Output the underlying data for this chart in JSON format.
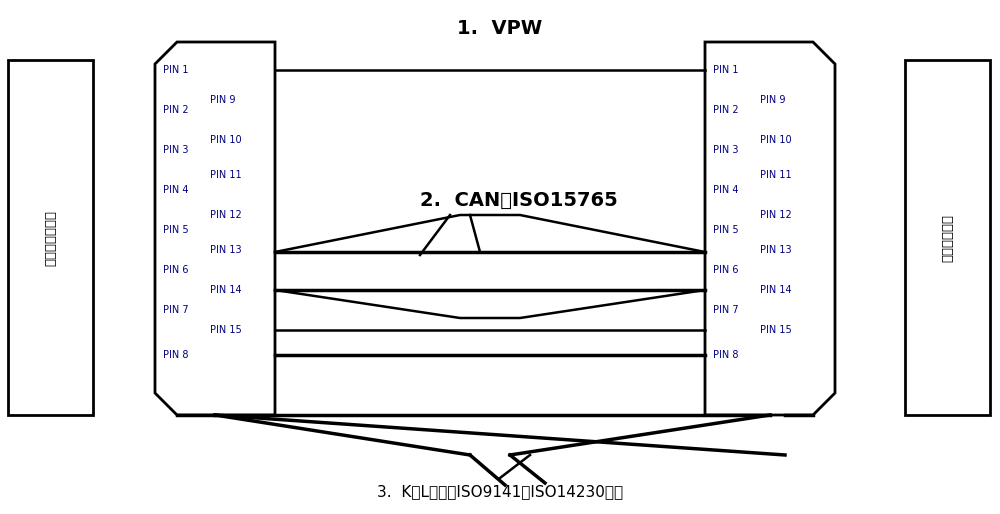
{
  "bg_color": "#ffffff",
  "line_color": "#000000",
  "pin_color": "#000080",
  "label_1": "1.  VPW",
  "label_2": "2.  CAN、ISO15765",
  "label_3": "3.  K、L线路（ISO9141、ISO14230等）",
  "left_box_text": "诊断仔内连接器",
  "right_box_text": "被试车辆接口",
  "left_pins_col1": [
    "PIN 1",
    "PIN 2",
    "PIN 3",
    "PIN 4",
    "PIN 5",
    "PIN 6",
    "PIN 7",
    "PIN 8"
  ],
  "left_pins_col2": [
    "PIN 9",
    "PIN 10",
    "PIN 11",
    "PIN 12",
    "PIN 13",
    "PIN 14",
    "PIN 15"
  ],
  "right_pins_col1": [
    "PIN 1",
    "PIN 2",
    "PIN 3",
    "PIN 4",
    "PIN 5",
    "PIN 6",
    "PIN 7",
    "PIN 8"
  ],
  "right_pins_col2": [
    "PIN 9",
    "PIN 10",
    "PIN 11",
    "PIN 12",
    "PIN 13",
    "PIN 14",
    "PIN 15"
  ]
}
